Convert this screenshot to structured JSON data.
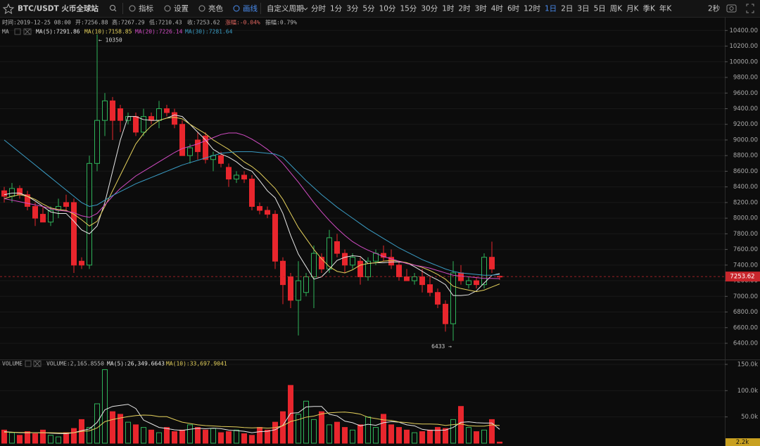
{
  "toolbar": {
    "symbol": "BTC/USDT 火币全球站",
    "tools": [
      "指标",
      "设置",
      "亮色",
      "画线"
    ],
    "active_tool": "画线",
    "custom_period": "自定义周期",
    "periods": [
      "分时",
      "1分",
      "3分",
      "5分",
      "10分",
      "15分",
      "30分",
      "1时",
      "2时",
      "3时",
      "4时",
      "6时",
      "12时",
      "1日",
      "2日",
      "3日",
      "5日",
      "周K",
      "月K",
      "季K",
      "年K"
    ],
    "active_period": "1日",
    "refresh": "2秒"
  },
  "info": {
    "time": "时间:2019-12-25 08:00",
    "open": "开:7256.88",
    "high": "高:7267.29",
    "low": "低:7210.43",
    "close": "收:7253.62",
    "change": "涨幅:-0.04%",
    "amplitude": "振幅:0.79%",
    "ma_title": "MA"
  },
  "chart_data": {
    "type": "candlestick",
    "up_color": "#2fb35a",
    "down_color": "#e8262d",
    "ylim": [
      6220,
      10430
    ],
    "yticks": [
      {
        "value": 6400,
        "label": "6400.00"
      },
      {
        "value": 6600,
        "label": "6600.00"
      },
      {
        "value": 6800,
        "label": "6800.00"
      },
      {
        "value": 7000,
        "label": "7000.00"
      },
      {
        "value": 7200,
        "label": "7200.00"
      },
      {
        "value": 7400,
        "label": "7400.00"
      },
      {
        "value": 7600,
        "label": "7600.00"
      },
      {
        "value": 7800,
        "label": "7800.00"
      },
      {
        "value": 8000,
        "label": "8000.00"
      },
      {
        "value": 8200,
        "label": "8200.00"
      },
      {
        "value": 8400,
        "label": "8400.00"
      },
      {
        "value": 8600,
        "label": "8600.00"
      },
      {
        "value": 8800,
        "label": "8800.00"
      },
      {
        "value": 9000,
        "label": "9000.00"
      },
      {
        "value": 9200,
        "label": "9200.00"
      },
      {
        "value": 9400,
        "label": "9400.00"
      },
      {
        "value": 9600,
        "label": "9600.00"
      },
      {
        "value": 9800,
        "label": "9800.00"
      },
      {
        "value": 10000,
        "label": "10000.00"
      },
      {
        "value": 10200,
        "label": "10200.00"
      },
      {
        "value": 10400,
        "label": "10400.00"
      }
    ],
    "grid": true,
    "ohlc": [
      [
        8350,
        8400,
        8200,
        8280
      ],
      [
        8280,
        8450,
        8200,
        8380
      ],
      [
        8380,
        8420,
        8250,
        8300
      ],
      [
        8300,
        8350,
        8100,
        8150
      ],
      [
        8150,
        8200,
        7900,
        8000
      ],
      [
        8050,
        8150,
        7950,
        7950
      ],
      [
        7950,
        8150,
        7900,
        8100
      ],
      [
        8100,
        8250,
        8000,
        8150
      ],
      [
        8200,
        8300,
        8100,
        8150
      ],
      [
        8200,
        8250,
        7300,
        7400
      ],
      [
        7450,
        7500,
        7350,
        7400
      ],
      [
        7400,
        8800,
        7350,
        8700
      ],
      [
        8700,
        10350,
        8600,
        9250
      ],
      [
        9250,
        9600,
        9050,
        9500
      ],
      [
        9500,
        9550,
        9000,
        9250
      ],
      [
        9400,
        9450,
        9100,
        9250
      ],
      [
        9250,
        9350,
        9200,
        9300
      ],
      [
        9300,
        9350,
        9050,
        9100
      ],
      [
        9100,
        9400,
        9050,
        9300
      ],
      [
        9300,
        9350,
        9200,
        9250
      ],
      [
        9250,
        9500,
        9150,
        9400
      ],
      [
        9400,
        9450,
        9300,
        9350
      ],
      [
        9350,
        9400,
        9150,
        9200
      ],
      [
        9200,
        9250,
        8800,
        8800
      ],
      [
        8800,
        8950,
        8700,
        8900
      ],
      [
        9000,
        9100,
        8750,
        8850
      ],
      [
        9050,
        9100,
        8700,
        8750
      ],
      [
        8750,
        8850,
        8600,
        8800
      ],
      [
        8800,
        8850,
        8650,
        8700
      ],
      [
        8650,
        8700,
        8400,
        8500
      ],
      [
        8500,
        8600,
        8450,
        8550
      ],
      [
        8550,
        8600,
        8450,
        8500
      ],
      [
        8500,
        8550,
        8100,
        8150
      ],
      [
        8150,
        8200,
        8050,
        8100
      ],
      [
        8100,
        8150,
        8000,
        8050
      ],
      [
        8050,
        8100,
        7350,
        7450
      ],
      [
        7450,
        7500,
        6900,
        7150
      ],
      [
        7250,
        7300,
        6850,
        6950
      ],
      [
        6950,
        7450,
        6500,
        7200
      ],
      [
        7050,
        7300,
        7000,
        7250
      ],
      [
        7250,
        7650,
        6850,
        7550
      ],
      [
        7500,
        7550,
        7300,
        7350
      ],
      [
        7350,
        7850,
        7300,
        7750
      ],
      [
        7700,
        7800,
        7500,
        7550
      ],
      [
        7550,
        7600,
        7300,
        7400
      ],
      [
        7400,
        7550,
        7350,
        7500
      ],
      [
        7450,
        7500,
        7150,
        7250
      ],
      [
        7250,
        7500,
        7200,
        7450
      ],
      [
        7450,
        7600,
        7400,
        7550
      ],
      [
        7550,
        7650,
        7450,
        7500
      ],
      [
        7500,
        7600,
        7350,
        7400
      ],
      [
        7400,
        7450,
        7200,
        7250
      ],
      [
        7250,
        7350,
        7200,
        7200
      ],
      [
        7200,
        7300,
        7150,
        7250
      ],
      [
        7250,
        7350,
        7050,
        7150
      ],
      [
        7150,
        7250,
        7000,
        7050
      ],
      [
        7050,
        7100,
        6850,
        6900
      ],
      [
        6900,
        6950,
        6550,
        6650
      ],
      [
        6650,
        7450,
        6433,
        7300
      ],
      [
        7300,
        7400,
        7150,
        7200
      ],
      [
        7150,
        7250,
        7100,
        7200
      ],
      [
        7200,
        7250,
        7100,
        7150
      ],
      [
        7150,
        7550,
        7100,
        7500
      ],
      [
        7500,
        7700,
        7300,
        7350
      ],
      [
        7256.88,
        7267.29,
        7210.43,
        7253.62
      ]
    ],
    "ma_series": [
      {
        "label": "MA(5):7291.86",
        "color": "#e6e6e6",
        "values": [
          8300,
          8320,
          8320,
          8280,
          8220,
          8150,
          8080,
          8060,
          8060,
          7960,
          7850,
          7800,
          7900,
          8200,
          8600,
          9000,
          9300,
          9300,
          9260,
          9250,
          9250,
          9280,
          9320,
          9300,
          9200,
          9100,
          9000,
          8880,
          8820,
          8780,
          8720,
          8640,
          8600,
          8480,
          8350,
          8260,
          8060,
          7780,
          7540,
          7380,
          7220,
          7250,
          7350,
          7460,
          7500,
          7520,
          7510,
          7420,
          7430,
          7430,
          7440,
          7440,
          7430,
          7380,
          7320,
          7260,
          7210,
          7150,
          7010,
          7010,
          7020,
          7070,
          7170,
          7270,
          7291.86
        ]
      },
      {
        "label": "MA(10):7158.85",
        "color": "#e3cf5b",
        "values": [
          8250,
          8280,
          8300,
          8280,
          8240,
          8180,
          8130,
          8110,
          8100,
          8050,
          7980,
          7900,
          7960,
          8150,
          8350,
          8550,
          8750,
          8950,
          9080,
          9180,
          9250,
          9280,
          9290,
          9270,
          9200,
          9140,
          9080,
          9000,
          8940,
          8880,
          8800,
          8720,
          8660,
          8580,
          8480,
          8380,
          8240,
          8060,
          7880,
          7740,
          7600,
          7480,
          7380,
          7320,
          7300,
          7340,
          7400,
          7420,
          7430,
          7450,
          7460,
          7450,
          7430,
          7400,
          7370,
          7330,
          7280,
          7220,
          7130,
          7100,
          7080,
          7060,
          7080,
          7120,
          7158.85
        ]
      },
      {
        "label": "MA(20):7226.14",
        "color": "#d24cc4",
        "values": [
          8250,
          8230,
          8210,
          8190,
          8170,
          8150,
          8120,
          8100,
          8090,
          8070,
          8030,
          8010,
          8060,
          8170,
          8280,
          8380,
          8460,
          8540,
          8600,
          8660,
          8720,
          8780,
          8840,
          8890,
          8920,
          8950,
          8990,
          9030,
          9070,
          9090,
          9090,
          9060,
          9010,
          8950,
          8880,
          8800,
          8700,
          8580,
          8460,
          8330,
          8200,
          8080,
          7970,
          7870,
          7780,
          7700,
          7640,
          7590,
          7550,
          7510,
          7480,
          7450,
          7420,
          7400,
          7380,
          7360,
          7330,
          7300,
          7270,
          7260,
          7250,
          7240,
          7230,
          7230,
          7226.14
        ]
      },
      {
        "label": "MA(30):7281.64",
        "color": "#3a9cc4",
        "values": [
          9000,
          8920,
          8840,
          8760,
          8680,
          8600,
          8520,
          8440,
          8360,
          8280,
          8200,
          8150,
          8170,
          8230,
          8290,
          8340,
          8390,
          8440,
          8480,
          8520,
          8560,
          8600,
          8640,
          8680,
          8710,
          8740,
          8770,
          8800,
          8830,
          8840,
          8850,
          8850,
          8850,
          8840,
          8830,
          8820,
          8780,
          8680,
          8580,
          8480,
          8390,
          8300,
          8220,
          8140,
          8070,
          8000,
          7930,
          7860,
          7800,
          7740,
          7680,
          7620,
          7570,
          7520,
          7470,
          7430,
          7390,
          7350,
          7320,
          7300,
          7290,
          7280,
          7270,
          7270,
          7281.64
        ]
      }
    ],
    "annotations": [
      {
        "text": "← 10350",
        "candle": 12,
        "at": "high"
      },
      {
        "text": "6433 →",
        "candle": 58,
        "at": "low"
      }
    ],
    "last_price_label": "7253.62",
    "volume": {
      "title": "VOLUME",
      "label": "VOLUME:2,165.8550",
      "last_label": "2.2k",
      "ylim": [
        0,
        158000
      ],
      "yticks": [
        {
          "value": 50000,
          "label": "50.0k"
        },
        {
          "value": 100000,
          "label": "100.0k"
        },
        {
          "value": 150000,
          "label": "150.0k"
        }
      ],
      "values": [
        25000,
        20000,
        15000,
        22000,
        18000,
        25000,
        15000,
        12000,
        20000,
        28000,
        45000,
        30000,
        75000,
        140000,
        60000,
        55000,
        40000,
        35000,
        30000,
        25000,
        20000,
        30000,
        22000,
        25000,
        35000,
        30000,
        25000,
        28000,
        20000,
        22000,
        25000,
        18000,
        15000,
        30000,
        25000,
        40000,
        60000,
        110000,
        55000,
        80000,
        45000,
        60000,
        35000,
        40000,
        30000,
        25000,
        35000,
        50000,
        30000,
        55000,
        35000,
        30000,
        25000,
        20000,
        22000,
        25000,
        30000,
        28000,
        45000,
        70000,
        30000,
        22000,
        25000,
        45000,
        2165.855
      ],
      "ma_series": [
        {
          "label": "MA(5):26,349.6643",
          "color": "#e6e6e6",
          "values": [
            22000,
            21000,
            20000,
            20000,
            20000,
            20000,
            19000,
            18400,
            18000,
            20000,
            24000,
            27000,
            39600,
            63600,
            70000,
            72000,
            74000,
            66000,
            44000,
            37000,
            30000,
            28000,
            25400,
            24400,
            26400,
            28400,
            27400,
            28600,
            27600,
            25000,
            24000,
            22600,
            20000,
            22000,
            22600,
            25600,
            34000,
            57000,
            58000,
            69000,
            70000,
            70000,
            55000,
            52000,
            42000,
            39000,
            33000,
            36000,
            34000,
            39000,
            41000,
            40000,
            35000,
            33000,
            26400,
            24400,
            24400,
            25000,
            30000,
            39600,
            40600,
            39000,
            38400,
            38400,
            26349.6643
          ]
        },
        {
          "label": "MA(10):33,697.9041",
          "color": "#e3cf5b",
          "values": [
            21000,
            21000,
            20500,
            20500,
            20000,
            20000,
            20000,
            19500,
            19500,
            20000,
            22500,
            23500,
            29000,
            41000,
            45000,
            48000,
            50500,
            52500,
            53500,
            53000,
            50500,
            50500,
            45000,
            40000,
            37500,
            35000,
            33500,
            32800,
            31800,
            31500,
            31000,
            29800,
            29100,
            29600,
            28600,
            29600,
            33100,
            41300,
            44800,
            49600,
            51600,
            55800,
            57800,
            58800,
            59300,
            57800,
            55300,
            49300,
            46800,
            44300,
            43300,
            40300,
            39300,
            37300,
            36500,
            36500,
            36000,
            33800,
            35300,
            36800,
            33300,
            32500,
            32500,
            35000,
            33697.9041
          ]
        }
      ]
    }
  }
}
